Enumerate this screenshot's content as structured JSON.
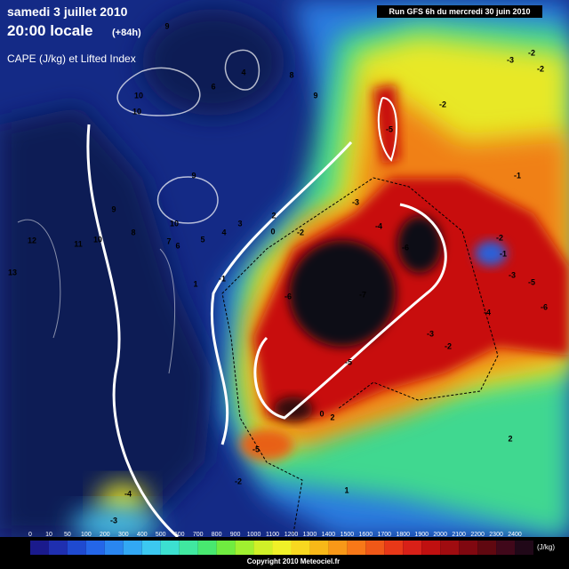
{
  "header": {
    "date": "samedi 3 juillet 2010",
    "time": "20:00 locale",
    "lead": "(+84h)",
    "field": "CAPE (J/kg) et Lifted Index",
    "run": "Run GFS 6h du mercredi 30 juin 2010"
  },
  "contour_labels": [
    9,
    6,
    4,
    8,
    9,
    10,
    10,
    9,
    10,
    9,
    8,
    7,
    6,
    5,
    4,
    3,
    2,
    0,
    -2,
    12,
    11,
    10,
    13,
    1,
    -1,
    -6,
    -7,
    -6,
    -3,
    -4,
    -5,
    -2,
    -3,
    -2,
    -2,
    -1,
    -2,
    -1,
    -3,
    -5,
    -6,
    -4,
    -3,
    -2,
    -5,
    0,
    2,
    -5,
    -2,
    1,
    2,
    -4,
    -3,
    1
  ],
  "colorbar": {
    "unit": "(J/kg)",
    "labels": [
      0,
      10,
      50,
      100,
      200,
      300,
      400,
      500,
      600,
      700,
      800,
      900,
      1000,
      1100,
      1200,
      1300,
      1400,
      1500,
      1600,
      1700,
      1800,
      1900,
      2000,
      2100,
      2200,
      2300,
      2400
    ],
    "colors": [
      "#1a1a8c",
      "#1f2fb0",
      "#1f4ad0",
      "#2466e8",
      "#2a86f0",
      "#32a8f4",
      "#3cc8f0",
      "#3ce0d0",
      "#40e8a0",
      "#48e870",
      "#70ec40",
      "#a0f030",
      "#d0f028",
      "#f0f028",
      "#f8d820",
      "#f8b818",
      "#f89818",
      "#f87818",
      "#f05818",
      "#e83818",
      "#d82018",
      "#c01010",
      "#a00c10",
      "#800810",
      "#600810",
      "#40081a",
      "#200818"
    ]
  },
  "copyright": "Copyright 2010 Meteociel.fr"
}
